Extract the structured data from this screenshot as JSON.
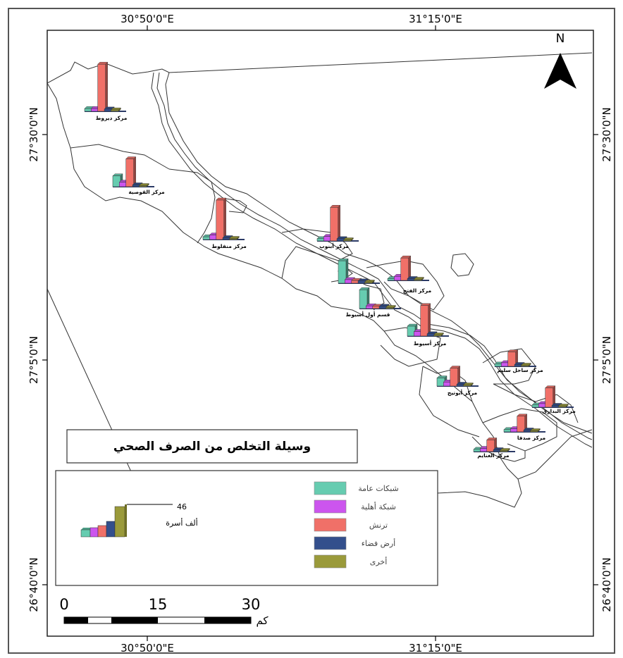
{
  "map": {
    "title": "وسيلة التخلص من الصرف الصحي",
    "north_label": "N",
    "graticule": {
      "top": [
        "30°50'0\"E",
        "31°15'0\"E"
      ],
      "bottom": [
        "30°50'0\"E",
        "31°15'0\"E"
      ],
      "left": [
        "27°30'0\"N",
        "27°5'0\"N",
        "26°40'0\"N"
      ],
      "right": [
        "27°30'0\"N",
        "27°5'0\"N",
        "26°40'0\"N"
      ]
    }
  },
  "legend": {
    "items": [
      {
        "label": "شبكات عامة",
        "color": "#66ccb0"
      },
      {
        "label": "شبكة أهلية",
        "color": "#cc55ee"
      },
      {
        "label": "ترنش",
        "color": "#f07068"
      },
      {
        "label": "أرض فضاء",
        "color": "#334f8c"
      },
      {
        "label": "أخرى",
        "color": "#9a9a3a"
      }
    ],
    "sample_value": "46",
    "sample_unit": "ألف أسرة"
  },
  "scale_bar": {
    "labels": [
      "0",
      "15",
      "30"
    ],
    "unit": "كم"
  },
  "districts": [
    {
      "name": "مركز ديروط",
      "values": [
        0.6,
        0.6,
        10.5,
        0.5,
        0.3
      ]
    },
    {
      "name": "مركز القوصية",
      "values": [
        2.4,
        1.0,
        6.2,
        0.4,
        0.2
      ]
    },
    {
      "name": "مركز منفلوط",
      "values": [
        0.6,
        1.0,
        8.8,
        0.4,
        0.2
      ]
    },
    {
      "name": "مركز أبنوب",
      "values": [
        0.5,
        1.0,
        7.5,
        0.5,
        0.2
      ]
    },
    {
      "name": "مركز الفتح",
      "values": [
        0.4,
        0.9,
        5.0,
        0.4,
        0.2
      ]
    },
    {
      "name": "",
      "values": [
        5.0,
        0.8,
        0.6,
        0.5,
        0.2
      ]
    },
    {
      "name": "قسم أول أسيوط",
      "values": [
        4.2,
        0.6,
        0.5,
        0.5,
        0.2
      ]
    },
    {
      "name": "مركز أسيوط",
      "values": [
        2.2,
        1.0,
        6.8,
        0.5,
        0.2
      ]
    },
    {
      "name": "مركز أبوتيج",
      "values": [
        1.8,
        0.9,
        4.0,
        0.4,
        0.2
      ]
    },
    {
      "name": "مركز ساحل سليم",
      "values": [
        0.5,
        0.8,
        3.2,
        0.4,
        0.2
      ]
    },
    {
      "name": "مركز البدارى",
      "values": [
        0.5,
        0.8,
        4.3,
        0.4,
        0.2
      ]
    },
    {
      "name": "مركز صدفا",
      "values": [
        0.5,
        0.7,
        3.5,
        0.4,
        0.2
      ]
    },
    {
      "name": "مركز الغنايم",
      "values": [
        0.5,
        0.7,
        2.6,
        0.4,
        0.2
      ]
    }
  ]
}
